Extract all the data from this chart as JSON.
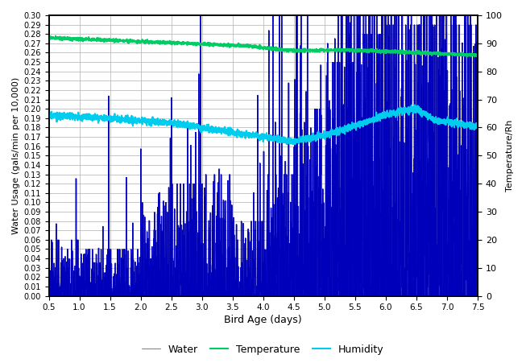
{
  "title": "",
  "xlabel": "Bird Age (days)",
  "ylabel_left": "Water Usage (gals/min per 10,000)",
  "ylabel_right": "Temperature/Rh",
  "xlim": [
    0.5,
    7.5
  ],
  "ylim_left": [
    0.0,
    0.3
  ],
  "ylim_right": [
    0,
    100
  ],
  "xticks": [
    0.5,
    1.0,
    1.5,
    2.0,
    2.5,
    3.0,
    3.5,
    4.0,
    4.5,
    5.0,
    5.5,
    6.0,
    6.5,
    7.0,
    7.5
  ],
  "yticks_left": [
    0.0,
    0.01,
    0.02,
    0.03,
    0.04,
    0.05,
    0.06,
    0.07,
    0.08,
    0.09,
    0.1,
    0.11,
    0.12,
    0.13,
    0.14,
    0.15,
    0.16,
    0.17,
    0.18,
    0.19,
    0.2,
    0.21,
    0.22,
    0.23,
    0.24,
    0.25,
    0.26,
    0.27,
    0.28,
    0.29,
    0.3
  ],
  "yticks_right": [
    0,
    10,
    20,
    30,
    40,
    50,
    60,
    70,
    80,
    90,
    100
  ],
  "color_water": "#0000BB",
  "color_temp": "#00CC66",
  "color_humidity": "#00CCEE",
  "legend_labels": [
    "Water",
    "Temperature",
    "Humidity"
  ],
  "background_color": "#FFFFFF",
  "grid_color": "#BBBBBB",
  "figsize": [
    6.53,
    4.51
  ],
  "dpi": 100
}
